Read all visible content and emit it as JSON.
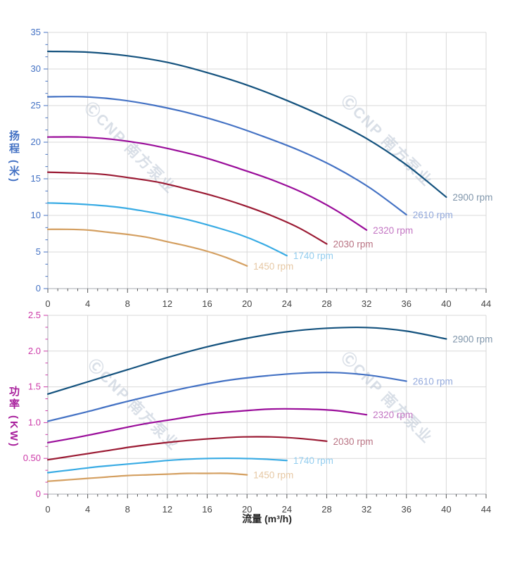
{
  "page": {
    "background": "#ffffff"
  },
  "watermark": {
    "text": "ⒸCNP 南方泵业",
    "color": "rgba(186,196,212,0.55)"
  },
  "x_axis_title": "流量 (m³/h)",
  "chart_data": [
    {
      "type": "line",
      "id": "head",
      "title": "",
      "ylabel": "扬程",
      "ylabel_unit": "(米)",
      "xlabel": "",
      "xlim": [
        0,
        44
      ],
      "ylim": [
        0,
        35
      ],
      "x_tick_step": 4,
      "x_tick_labels": [
        "0",
        "4",
        "8",
        "12",
        "16",
        "20",
        "24",
        "28",
        "32",
        "36",
        "40",
        "44"
      ],
      "y_tick_step": 5,
      "y_tick_labels": [
        "0",
        "5",
        "10",
        "15",
        "20",
        "25",
        "30",
        "35"
      ],
      "grid": true,
      "legend_position": "curve-end-labels",
      "axis_label_color": "#4472c4",
      "tick_label_color": "#4472c4",
      "x_tick_label_color": "#454545",
      "series": [
        {
          "name": "2900 rpm",
          "color": "#14527e",
          "label_color": "#8096ab",
          "x": [
            0,
            4,
            8,
            12,
            16,
            20,
            24,
            28,
            32,
            36,
            40
          ],
          "values": [
            32.4,
            32.3,
            31.8,
            30.9,
            29.5,
            27.8,
            25.7,
            23.3,
            20.5,
            16.9,
            12.5
          ]
        },
        {
          "name": "2610 rpm",
          "color": "#4472c4",
          "label_color": "#93a9dc",
          "x": [
            0,
            3.6,
            7.2,
            10.8,
            14.4,
            18,
            21.6,
            25.2,
            28.8,
            32.4,
            36
          ],
          "values": [
            26.2,
            26.2,
            25.8,
            25.0,
            23.9,
            22.5,
            20.8,
            18.9,
            16.6,
            13.7,
            10.1
          ]
        },
        {
          "name": "2320 rpm",
          "color": "#9a0d9a",
          "label_color": "#c375c3",
          "x": [
            0,
            3.2,
            6.4,
            9.6,
            12.8,
            16,
            19.2,
            22.4,
            25.6,
            28.8,
            32
          ],
          "values": [
            20.7,
            20.7,
            20.4,
            19.8,
            18.9,
            17.8,
            16.4,
            14.9,
            13.1,
            10.8,
            8.0
          ]
        },
        {
          "name": "2030 rpm",
          "color": "#9b1b34",
          "label_color": "#b97383",
          "x": [
            0,
            2.8,
            5.6,
            8.4,
            11.2,
            14,
            16.8,
            19.6,
            22.4,
            25.2,
            28
          ],
          "values": [
            15.9,
            15.8,
            15.6,
            15.1,
            14.5,
            13.6,
            12.6,
            11.4,
            10.0,
            8.3,
            6.1
          ]
        },
        {
          "name": "1740 rpm",
          "color": "#38abe4",
          "label_color": "#93cdef",
          "x": [
            0,
            2.4,
            4.8,
            7.2,
            9.6,
            12,
            14.4,
            16.8,
            19.2,
            21.6,
            24
          ],
          "values": [
            11.7,
            11.6,
            11.4,
            11.1,
            10.6,
            10.0,
            9.3,
            8.4,
            7.4,
            6.1,
            4.5
          ]
        },
        {
          "name": "1450 rpm",
          "color": "#d49f60",
          "label_color": "#e6c8a4",
          "x": [
            0,
            2,
            4,
            6,
            8,
            10,
            12,
            14,
            16,
            18,
            20
          ],
          "values": [
            8.1,
            8.1,
            8.0,
            7.7,
            7.4,
            7.0,
            6.4,
            5.8,
            5.1,
            4.2,
            3.1
          ]
        }
      ]
    },
    {
      "type": "line",
      "id": "power",
      "title": "",
      "ylabel": "功率",
      "ylabel_unit": "(KW)",
      "xlabel": "流量 (m³/h)",
      "xlim": [
        0,
        44
      ],
      "ylim": [
        0,
        2.5
      ],
      "x_tick_step": 4,
      "x_tick_labels": [
        "0",
        "4",
        "8",
        "12",
        "16",
        "20",
        "24",
        "28",
        "32",
        "36",
        "40",
        "44"
      ],
      "y_tick_step": 0.5,
      "y_tick_labels": [
        "0",
        "0.50",
        "1.0",
        "1.5",
        "2.0",
        "2.5"
      ],
      "grid": true,
      "legend_position": "curve-end-labels",
      "axis_label_color": "#a81f9c",
      "tick_label_color": "#cc3aa8",
      "x_tick_label_color": "#454545",
      "series": [
        {
          "name": "2900 rpm",
          "color": "#14527e",
          "label_color": "#8096ab",
          "x": [
            0,
            4,
            8,
            12,
            16,
            20,
            24,
            28,
            32,
            36,
            40
          ],
          "values": [
            1.4,
            1.57,
            1.74,
            1.91,
            2.06,
            2.18,
            2.27,
            2.32,
            2.33,
            2.28,
            2.17
          ]
        },
        {
          "name": "2610 rpm",
          "color": "#4472c4",
          "label_color": "#93a9dc",
          "x": [
            0,
            3.6,
            7.2,
            10.8,
            14.4,
            18,
            21.6,
            25.2,
            28.8,
            32.4,
            36
          ],
          "values": [
            1.02,
            1.14,
            1.27,
            1.39,
            1.5,
            1.59,
            1.65,
            1.69,
            1.7,
            1.66,
            1.58
          ]
        },
        {
          "name": "2320 rpm",
          "color": "#9a0d9a",
          "label_color": "#c375c3",
          "x": [
            0,
            3.2,
            6.4,
            9.6,
            12.8,
            16,
            19.2,
            22.4,
            25.6,
            28.8,
            32
          ],
          "values": [
            0.72,
            0.8,
            0.89,
            0.98,
            1.05,
            1.12,
            1.16,
            1.19,
            1.19,
            1.17,
            1.11
          ]
        },
        {
          "name": "2030 rpm",
          "color": "#9b1b34",
          "label_color": "#b97383",
          "x": [
            0,
            2.8,
            5.6,
            8.4,
            11.2,
            14,
            16.8,
            19.6,
            22.4,
            25.2,
            28
          ],
          "values": [
            0.48,
            0.54,
            0.6,
            0.66,
            0.71,
            0.75,
            0.78,
            0.8,
            0.8,
            0.78,
            0.74
          ]
        },
        {
          "name": "1740 rpm",
          "color": "#38abe4",
          "label_color": "#93cdef",
          "x": [
            0,
            2.4,
            4.8,
            7.2,
            9.6,
            12,
            14.4,
            16.8,
            19.2,
            21.6,
            24
          ],
          "values": [
            0.3,
            0.34,
            0.38,
            0.41,
            0.44,
            0.47,
            0.49,
            0.5,
            0.5,
            0.49,
            0.47
          ]
        },
        {
          "name": "1450 rpm",
          "color": "#d49f60",
          "label_color": "#e6c8a4",
          "x": [
            0,
            2,
            4,
            6,
            8,
            10,
            12,
            14,
            16,
            18,
            20
          ],
          "values": [
            0.18,
            0.2,
            0.22,
            0.24,
            0.26,
            0.27,
            0.28,
            0.29,
            0.29,
            0.29,
            0.27
          ]
        }
      ]
    }
  ]
}
